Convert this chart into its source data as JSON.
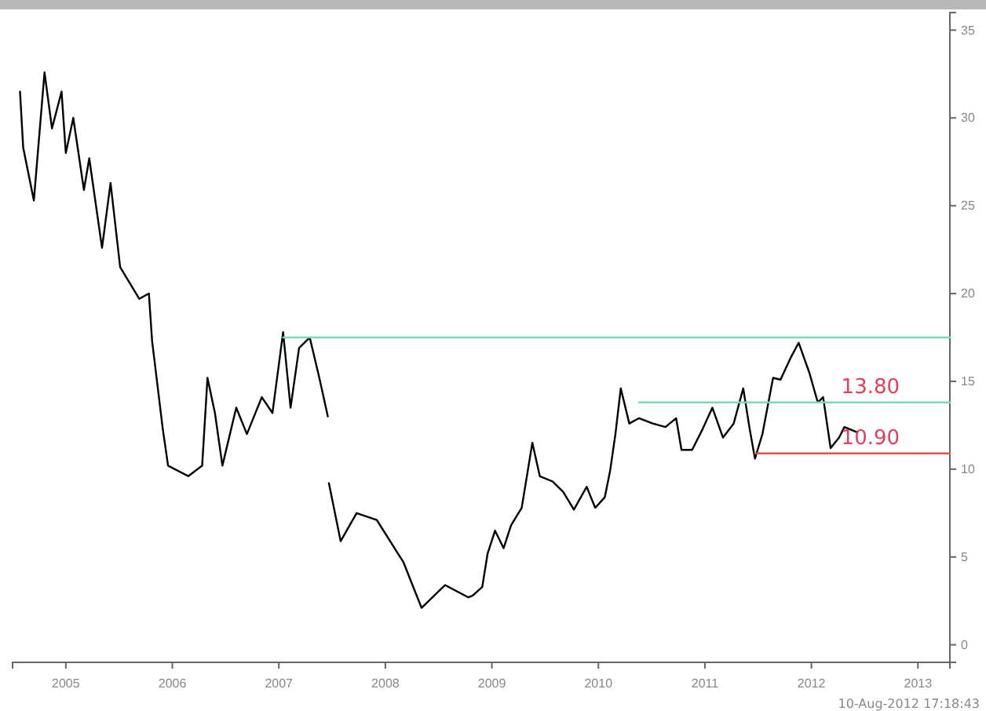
{
  "chart_data": {
    "type": "line",
    "xlim": [
      2005,
      2013.8
    ],
    "ylim": [
      -1,
      36
    ],
    "xticks": [
      {
        "value": 2005.5,
        "label": "2005"
      },
      {
        "value": 2006.5,
        "label": "2006"
      },
      {
        "value": 2007.5,
        "label": "2007"
      },
      {
        "value": 2008.5,
        "label": "2008"
      },
      {
        "value": 2009.5,
        "label": "2009"
      },
      {
        "value": 2010.5,
        "label": "2010"
      },
      {
        "value": 2011.5,
        "label": "2011"
      },
      {
        "value": 2012.5,
        "label": "2012"
      },
      {
        "value": 2013.5,
        "label": "2013"
      }
    ],
    "yticks": [
      0,
      5,
      10,
      15,
      20,
      25,
      30,
      35
    ],
    "series": [
      {
        "color": "#000000",
        "x": [
          2005.07,
          2005.1,
          2005.2,
          2005.3,
          2005.37,
          2005.46,
          2005.5,
          2005.57,
          2005.67,
          2005.72,
          2005.84,
          2005.92,
          2006.01,
          2006.19,
          2006.28,
          2006.31,
          2006.41,
          2006.46,
          2006.65,
          2006.78,
          2006.83,
          2006.9,
          2006.97,
          2007.1,
          2007.2,
          2007.34,
          2007.44,
          2007.54,
          2007.61,
          2007.69,
          2007.79,
          2007.88,
          2007.96,
          2007.965,
          2007.97,
          2008.08,
          2008.23,
          2008.42,
          2008.67,
          2008.84,
          2009.06,
          2009.28,
          2009.32,
          2009.41,
          2009.46,
          2009.53,
          2009.61,
          2009.68,
          2009.78,
          2009.88,
          2009.95,
          2010.07,
          2010.17,
          2010.27,
          2010.39,
          2010.47,
          2010.56,
          2010.61,
          2010.66,
          2010.71,
          2010.79,
          2010.88,
          2011.01,
          2011.13,
          2011.23,
          2011.28,
          2011.38,
          2011.48,
          2011.57,
          2011.67,
          2011.77,
          2011.86,
          2011.92,
          2011.97,
          2012.04,
          2012.14,
          2012.21,
          2012.31,
          2012.38,
          2012.48,
          2012.56,
          2012.61,
          2012.68,
          2012.76,
          2012.81,
          2012.93
        ],
        "values": [
          31.5,
          28.3,
          25.3,
          32.6,
          29.4,
          31.5,
          28.0,
          30.0,
          25.9,
          27.7,
          22.6,
          26.3,
          21.5,
          19.7,
          20.0,
          17.3,
          12.3,
          10.2,
          9.6,
          10.2,
          15.2,
          13.2,
          10.2,
          13.5,
          12.0,
          14.1,
          13.2,
          17.8,
          13.5,
          16.9,
          17.5,
          15.2,
          13.0,
          null,
          9.2,
          5.9,
          7.5,
          7.1,
          4.7,
          2.1,
          3.4,
          2.7,
          2.8,
          3.3,
          5.2,
          6.5,
          5.5,
          6.8,
          7.8,
          11.5,
          9.6,
          9.3,
          8.7,
          7.7,
          9.0,
          7.8,
          8.4,
          9.9,
          12.0,
          14.6,
          12.6,
          12.9,
          12.6,
          12.4,
          12.9,
          11.1,
          11.1,
          12.3,
          13.5,
          11.8,
          12.6,
          14.6,
          12.3,
          10.6,
          12.0,
          15.2,
          15.1,
          16.4,
          17.2,
          15.5,
          13.8,
          14.1,
          11.2,
          11.8,
          12.4,
          12.1
        ]
      },
      {
        "color": "#7fd8b8",
        "x": [
          2007.54,
          2013.8
        ],
        "values": [
          17.5,
          17.5
        ]
      },
      {
        "color": "#7fd8b8",
        "x": [
          2010.88,
          2013.8
        ],
        "values": [
          13.8,
          13.8
        ]
      },
      {
        "color": "#e05050",
        "x": [
          2011.97,
          2013.8
        ],
        "values": [
          10.9,
          10.9
        ]
      }
    ],
    "annotations": [
      {
        "text": "13.80",
        "x": 2012.78,
        "y": 13.8
      },
      {
        "text": "10.90",
        "x": 2012.78,
        "y": 10.9
      },
      "10-Aug-2012 17:18:43"
    ],
    "grid": false,
    "line_style": "solid",
    "marker": "none"
  }
}
